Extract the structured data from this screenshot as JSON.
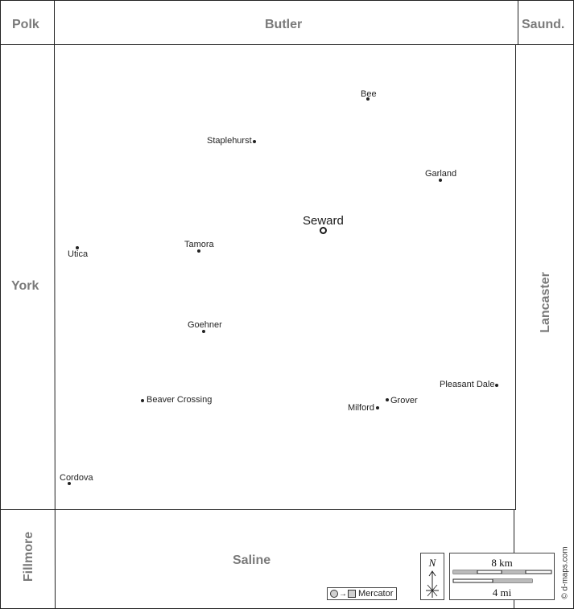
{
  "map": {
    "counties": {
      "polk": "Polk",
      "butler": "Butler",
      "saunders": "Saund.",
      "york": "York",
      "lancaster": "Lancaster",
      "fillmore": "Fillmore",
      "saline": "Saline"
    },
    "county_seat": {
      "name": "Seward"
    },
    "towns": [
      {
        "name": "Bee"
      },
      {
        "name": "Staplehurst"
      },
      {
        "name": "Garland"
      },
      {
        "name": "Tamora"
      },
      {
        "name": "Utica"
      },
      {
        "name": "Goehner"
      },
      {
        "name": "Pleasant Dale"
      },
      {
        "name": "Beaver Crossing"
      },
      {
        "name": "Grover"
      },
      {
        "name": "Milford"
      },
      {
        "name": "Cordova"
      }
    ],
    "colors": {
      "county_label": "#7a7a7a",
      "border": "#222222",
      "town": "#222222"
    }
  },
  "legend": {
    "projection": "Mercator",
    "north": "N",
    "scale_km": "8 km",
    "scale_mi": "4 mi"
  },
  "credit": "© d-maps.com"
}
